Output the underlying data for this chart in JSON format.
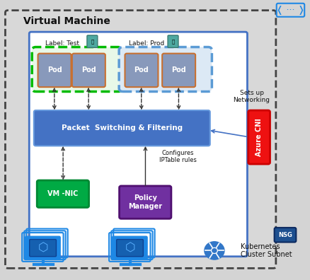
{
  "bg_color": "#d4d4d4",
  "vm_box_face": "#d8d8d8",
  "vm_box_edge": "#444444",
  "inner_face": "#ffffff",
  "inner_edge": "#4472c4",
  "green_group_face": "#e8f8e8",
  "green_group_edge": "#00bb00",
  "blue_group_face": "#dce9f5",
  "blue_group_edge": "#5b9bd5",
  "pod_face": "#8899bb",
  "pod_edge": "#c87030",
  "packet_face": "#4472c4",
  "packet_edge": "#6699dd",
  "vm_nic_face": "#00aa44",
  "vm_nic_edge": "#008833",
  "policy_face": "#7030a0",
  "policy_edge": "#501070",
  "azure_face": "#ee1111",
  "azure_edge": "#cc0000",
  "blue_icon": "#1e88e5",
  "k8s_face": "#3277c8",
  "k8s_edge": "#1a55a0",
  "nsg_face": "#1e5090",
  "nsg_edge": "#0d2a60",
  "arrow_dark": "#333333",
  "arrow_blue": "#4472c4",
  "text_white": "#ffffff",
  "text_black": "#111111",
  "title_vm": "Virtual Machine",
  "label_test": "Label: Test",
  "label_prod": "Label: Prod",
  "sets_up": "Sets up\nNetworking",
  "configures": "Configures\nIPTable rules",
  "packet_text": "Packet  Switching & Filtering",
  "vm_nic_text": "VM -NIC",
  "policy_text": "Policy\nManager",
  "azure_text": "Azure CNI",
  "kubernetes_text": "Kubernetes\nCluster Subnet",
  "nsg_text": "NSG",
  "pod_text": "Pod",
  "dots_symbol": "< ••• >"
}
